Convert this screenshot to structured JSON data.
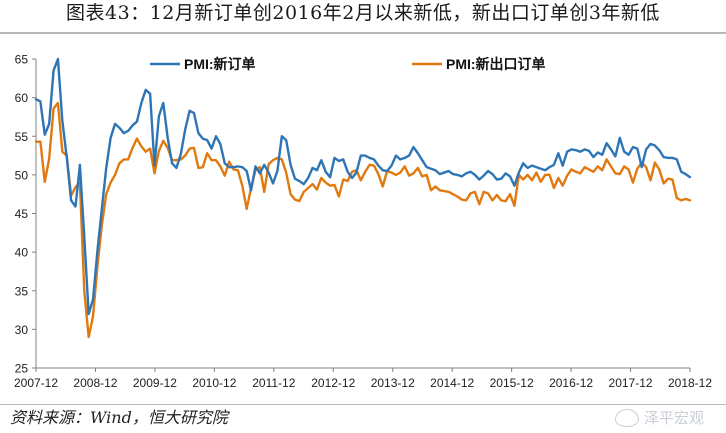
{
  "figure": {
    "title": "图表43：12月新订单创2016年2月以来新低，新出口订单创3年新低",
    "source": "资料来源：Wind，恒大研究院",
    "watermark_text": "泽平宏观",
    "watermark_icon": "wechat-icon"
  },
  "chart_data": {
    "type": "line",
    "title": "",
    "xlabel": "",
    "ylabel": "",
    "ylim": [
      25,
      65
    ],
    "yticks": [
      25,
      30,
      35,
      40,
      45,
      50,
      55,
      60,
      65
    ],
    "xticks": [
      "2007-12",
      "2008-12",
      "2009-12",
      "2010-12",
      "2011-12",
      "2012-12",
      "2013-12",
      "2014-12",
      "2015-12",
      "2016-12",
      "2017-12",
      "2018-12"
    ],
    "x_start": "2007-12",
    "x_end": "2018-12",
    "grid": false,
    "legend_placement": "top",
    "series": [
      {
        "name": "PMI:新订单",
        "color": "#2e75b6",
        "values": [
          59.8,
          59.5,
          55.2,
          56.6,
          63.5,
          65.0,
          57.0,
          52.3,
          46.7,
          45.9,
          51.3,
          42.0,
          32.0,
          33.9,
          40.2,
          45.6,
          50.9,
          54.8,
          56.6,
          56.1,
          55.4,
          55.7,
          56.4,
          56.9,
          59.3,
          61.0,
          60.5,
          51.2,
          57.6,
          59.3,
          54.8,
          51.5,
          50.9,
          52.7,
          55.9,
          58.3,
          58.0,
          55.4,
          54.7,
          54.5,
          53.4,
          55.0,
          54.0,
          51.5,
          51.0,
          51.0,
          51.1,
          51.0,
          50.5,
          48.0,
          51.1,
          50.2,
          51.3,
          50.3,
          48.9,
          50.5,
          55.0,
          54.5,
          51.3,
          49.5,
          49.2,
          48.8,
          49.6,
          50.9,
          50.6,
          51.9,
          50.4,
          49.7,
          52.2,
          51.8,
          52.0,
          50.4,
          49.6,
          50.3,
          52.5,
          52.5,
          52.2,
          52.0,
          51.2,
          50.6,
          50.5,
          51.2,
          52.5,
          52.0,
          52.2,
          52.5,
          53.6,
          52.8,
          51.9,
          51.0,
          50.8,
          50.6,
          50.1,
          50.3,
          50.5,
          50.1,
          50.0,
          49.8,
          50.2,
          50.4,
          50.0,
          49.4,
          49.9,
          50.5,
          50.1,
          49.4,
          49.5,
          50.2,
          49.8,
          48.6,
          50.3,
          51.5,
          50.9,
          51.2,
          51.0,
          50.8,
          50.6,
          51.0,
          51.3,
          52.8,
          51.2,
          53.0,
          53.3,
          53.2,
          53.0,
          53.3,
          53.1,
          52.3,
          52.9,
          52.6,
          54.1,
          53.3,
          52.4,
          54.8,
          53.0,
          52.6,
          53.6,
          53.4,
          51.0,
          53.3,
          54.0,
          53.8,
          53.2,
          52.3,
          52.2,
          52.2,
          52.0,
          50.4,
          50.1,
          49.7
        ]
      },
      {
        "name": "PMI:新出口订单",
        "color": "#e07a10",
        "values": [
          54.3,
          54.3,
          49.1,
          52.1,
          58.6,
          59.3,
          53.0,
          52.5,
          47.3,
          48.4,
          49.0,
          35.0,
          29.0,
          31.7,
          38.2,
          43.5,
          47.5,
          49.0,
          50.0,
          51.5,
          52.0,
          52.0,
          53.5,
          54.7,
          53.7,
          53.0,
          53.4,
          50.2,
          53.1,
          54.4,
          53.5,
          51.9,
          51.9,
          52.0,
          52.5,
          53.4,
          53.5,
          50.9,
          51.0,
          52.8,
          51.9,
          51.9,
          51.1,
          49.9,
          51.7,
          50.7,
          50.6,
          48.6,
          45.6,
          48.3,
          50.6,
          51.0,
          47.8,
          51.4,
          51.9,
          52.2,
          52.0,
          50.3,
          47.5,
          46.8,
          46.6,
          47.8,
          48.3,
          48.8,
          48.1,
          49.6,
          49.0,
          48.6,
          48.7,
          47.2,
          49.4,
          49.2,
          50.4,
          50.6,
          49.3,
          50.4,
          51.3,
          51.2,
          50.1,
          48.5,
          50.5,
          50.3,
          50.0,
          50.3,
          51.1,
          49.9,
          50.2,
          50.9,
          49.8,
          50.0,
          48.0,
          48.5,
          48.0,
          47.9,
          47.8,
          47.5,
          47.2,
          46.8,
          46.7,
          47.6,
          47.8,
          46.2,
          47.8,
          47.6,
          46.7,
          47.4,
          46.7,
          46.6,
          47.5,
          46.0,
          50.0,
          49.4,
          50.0,
          49.3,
          50.3,
          49.1,
          50.0,
          50.0,
          48.3,
          49.6,
          48.6,
          49.9,
          50.7,
          50.4,
          50.2,
          51.0,
          50.7,
          50.4,
          51.1,
          50.6,
          52.0,
          51.1,
          50.2,
          50.1,
          51.1,
          50.7,
          49.0,
          50.8,
          51.6,
          51.0,
          49.3,
          51.6,
          50.7,
          48.9,
          49.5,
          49.4,
          47.0,
          46.7,
          46.9,
          46.7
        ]
      }
    ]
  }
}
